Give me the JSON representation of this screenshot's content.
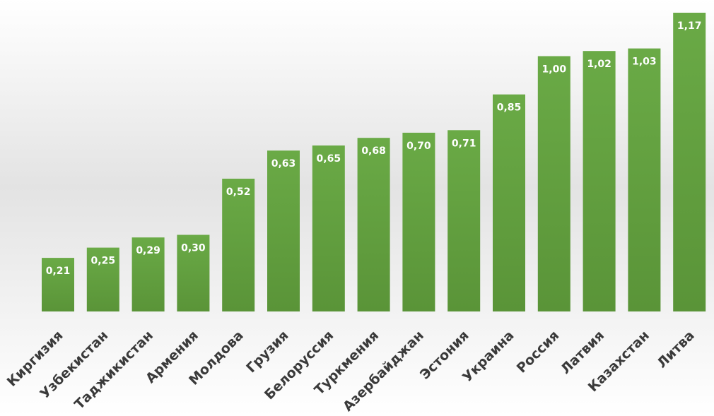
{
  "chart_data": {
    "type": "bar",
    "categories": [
      "Киргизия",
      "Узбекистан",
      "Таджикистан",
      "Армения",
      "Молдова",
      "Грузия",
      "Белоруссия",
      "Туркмения",
      "Азербайджан",
      "Эстония",
      "Украина",
      "Россия",
      "Латвия",
      "Казахстан",
      "Литва"
    ],
    "values": [
      0.21,
      0.25,
      0.29,
      0.3,
      0.52,
      0.63,
      0.65,
      0.68,
      0.7,
      0.71,
      0.85,
      1.0,
      1.02,
      1.03,
      1.17
    ],
    "value_labels": [
      "0,21",
      "0,25",
      "0,29",
      "0,30",
      "0,52",
      "0,63",
      "0,65",
      "0,68",
      "0,70",
      "0,71",
      "0,85",
      "1,00",
      "1,02",
      "1,03",
      "1,17"
    ],
    "title": "",
    "xlabel": "",
    "ylabel": "",
    "ylim": [
      0,
      1.17
    ],
    "grid": false,
    "legend": "none",
    "bar_color": "#6aaa46",
    "bar_color_dark": "#5a9438"
  }
}
